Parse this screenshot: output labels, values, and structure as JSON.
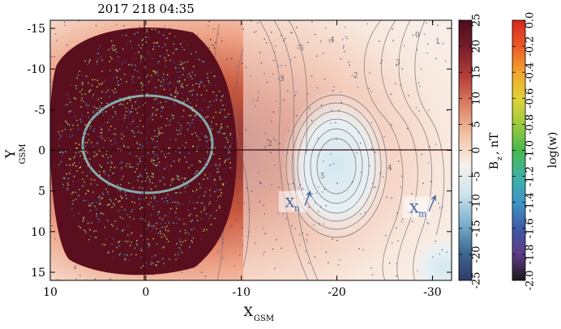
{
  "title": "2017   218   04:35",
  "chart_data": {
    "type": "heatmap",
    "title": "2017   218   04:35",
    "xlabel": {
      "main": "X",
      "sub": "GSM"
    },
    "ylabel": {
      "main": "Y",
      "sub": "GSM"
    },
    "xlim": [
      10,
      -32
    ],
    "ylim": [
      -16,
      16
    ],
    "xticks": [
      10,
      0,
      -10,
      -20,
      -30
    ],
    "xtick_labels": [
      "10",
      "0",
      "-10",
      "-20",
      "-30"
    ],
    "yticks": [
      -15,
      -10,
      -5,
      0,
      5,
      10,
      15
    ],
    "ytick_labels": [
      "-15",
      "-10",
      "-5",
      "0",
      "5",
      "10",
      "15"
    ],
    "reference_lines": {
      "x": 0,
      "y": 0
    },
    "annotations": [
      {
        "text": "X",
        "sub": "n",
        "x": -14.6,
        "y": 6.6,
        "arrow_to": [
          -17.2,
          5.1
        ]
      },
      {
        "text": "X",
        "sub": "m",
        "x": -27.6,
        "y": 7.3,
        "arrow_to": [
          -30.3,
          5.6
        ]
      }
    ],
    "colorbars": [
      {
        "label": "B",
        "label_sub": "z",
        "label_suffix": ", nT",
        "range": [
          -25,
          25
        ],
        "ticks": [
          "-25",
          "-20",
          "-15",
          "-10",
          "-5",
          "0",
          "5",
          "10",
          "15",
          "20",
          "25"
        ],
        "colors": [
          "#2e3a66",
          "#3f6a94",
          "#7fb1cd",
          "#cfe4ee",
          "#f6f1ec",
          "#f1c4a6",
          "#df8568",
          "#b8403c",
          "#7a1f2c",
          "#4d0c1c"
        ]
      },
      {
        "label": "log(w)",
        "range": [
          -2.0,
          0.0
        ],
        "ticks": [
          "-2.0",
          "-1.8",
          "-1.6",
          "-1.4",
          "-1.2",
          "-1.0",
          "-0.8",
          "-0.6",
          "-0.4",
          "-0.2",
          "0.0"
        ],
        "colors": [
          "#1b1b1b",
          "#5e3a84",
          "#3d59a8",
          "#3f95c5",
          "#3fb3a4",
          "#49b74f",
          "#9ccc3c",
          "#e0d235",
          "#f4a42d",
          "#ea5b27",
          "#d7261f"
        ]
      }
    ],
    "contour_levels": [
      "-5",
      "-4",
      "-3",
      "-2",
      "0",
      "1",
      "2",
      "3",
      "4",
      "5"
    ]
  }
}
